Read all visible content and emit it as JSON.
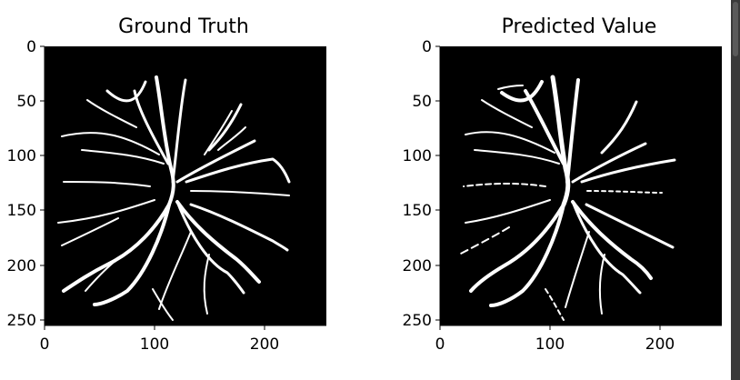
{
  "chart_data": [
    {
      "type": "image",
      "title": "Ground Truth",
      "xlim": [
        0,
        255
      ],
      "ylim": [
        0,
        255
      ],
      "x_ticks": [
        0,
        100,
        200
      ],
      "y_ticks": [
        0,
        50,
        100,
        150,
        200,
        250
      ]
    },
    {
      "type": "image",
      "title": "Predicted Value",
      "xlim": [
        0,
        255
      ],
      "ylim": [
        0,
        255
      ],
      "x_ticks": [
        0,
        100,
        200
      ],
      "y_ticks": [
        0,
        50,
        100,
        150,
        200,
        250
      ]
    }
  ],
  "colors": {
    "image_background": "#000000",
    "vessel": "#ffffff",
    "axis": "#000000",
    "scrollbar": "#3a3a3a"
  }
}
